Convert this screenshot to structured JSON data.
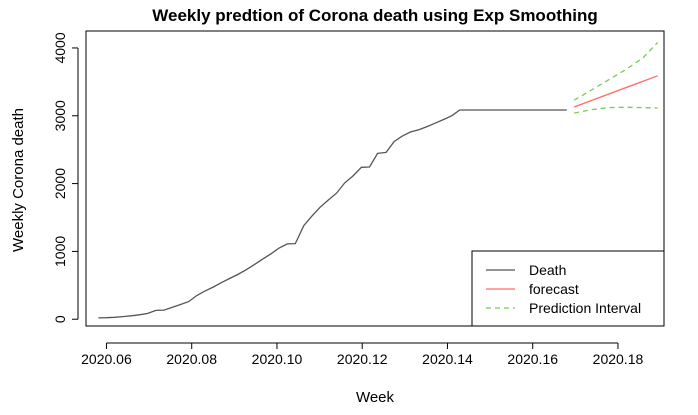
{
  "chart_data": {
    "type": "line",
    "title": "Weekly predtion of Corona death using Exp Smoothing",
    "xlabel": "Week",
    "ylabel": "Weekly Corona death",
    "xlim": [
      2020.0552,
      2020.1908
    ],
    "ylim": [
      -100,
      4250
    ],
    "x_ticks": [
      2020.06,
      2020.08,
      2020.1,
      2020.12,
      2020.14,
      2020.16,
      2020.18
    ],
    "x_tick_labels": [
      "2020.06",
      "2020.08",
      "2020.10",
      "2020.12",
      "2020.14",
      "2020.16",
      "2020.18"
    ],
    "y_ticks": [
      0,
      1000,
      2000,
      3000,
      4000
    ],
    "y_tick_labels": [
      "0",
      "1000",
      "2000",
      "3000",
      "4000"
    ],
    "legend": {
      "position": "bottom-right",
      "entries": [
        {
          "label": "Death",
          "color": "#555555",
          "dash": "solid"
        },
        {
          "label": "forecast",
          "color": "#ff6b6b",
          "dash": "solid"
        },
        {
          "label": "Prediction Interval",
          "color": "#77cc55",
          "dash": "dashed"
        }
      ]
    },
    "series": [
      {
        "name": "Death",
        "color": "#555555",
        "dash": "solid",
        "x": [
          2020.0581,
          2020.06,
          2020.0619,
          2020.0638,
          2020.0658,
          2020.0677,
          2020.0696,
          2020.0716,
          2020.0735,
          2020.0754,
          2020.0773,
          2020.0793,
          2020.0812,
          2020.0831,
          2020.0851,
          2020.087,
          2020.0889,
          2020.0908,
          2020.0928,
          2020.0947,
          2020.0966,
          2020.0986,
          2020.1005,
          2020.1024,
          2020.1043,
          2020.1063,
          2020.1082,
          2020.1101,
          2020.1121,
          2020.114,
          2020.1159,
          2020.1178,
          2020.1198,
          2020.1217,
          2020.1236,
          2020.1256,
          2020.1275,
          2020.1294,
          2020.1313,
          2020.1333,
          2020.1352,
          2020.1371,
          2020.1391,
          2020.141,
          2020.1429,
          2020.1448,
          2020.1468,
          2020.1487,
          2020.1506,
          2020.1526,
          2020.1545,
          2020.1564,
          2020.1583,
          2020.1603,
          2020.1622,
          2020.1641,
          2020.1661,
          2020.168
        ],
        "values": [
          20,
          22,
          28,
          38,
          50,
          65,
          85,
          130,
          135,
          175,
          215,
          260,
          350,
          415,
          475,
          540,
          600,
          660,
          730,
          805,
          885,
          965,
          1050,
          1110,
          1115,
          1380,
          1520,
          1650,
          1760,
          1860,
          2010,
          2110,
          2240,
          2245,
          2445,
          2460,
          2620,
          2700,
          2760,
          2795,
          2840,
          2890,
          2945,
          3000,
          3085,
          3085,
          3085,
          3085,
          3085,
          3085,
          3085,
          3085,
          3085,
          3085,
          3085,
          3085,
          3085,
          3085
        ]
      },
      {
        "name": "forecast",
        "color": "#ff6b6b",
        "dash": "solid",
        "x": [
          2020.1697,
          2020.1893
        ],
        "values": [
          3130,
          3590
        ]
      },
      {
        "name": "Prediction Interval",
        "color": "#77cc55",
        "dash": "dashed",
        "x": [
          2020.1697,
          2020.1738,
          2020.1778,
          2020.1818,
          2020.1858,
          2020.1893
        ],
        "values": [
          3230,
          3380,
          3530,
          3680,
          3850,
          4080
        ]
      },
      {
        "name": "Prediction Interval",
        "color": "#77cc55",
        "dash": "dashed",
        "x": [
          2020.1697,
          2020.1738,
          2020.1778,
          2020.1818,
          2020.1858,
          2020.1893
        ],
        "values": [
          3040,
          3090,
          3120,
          3125,
          3120,
          3115
        ]
      }
    ]
  }
}
